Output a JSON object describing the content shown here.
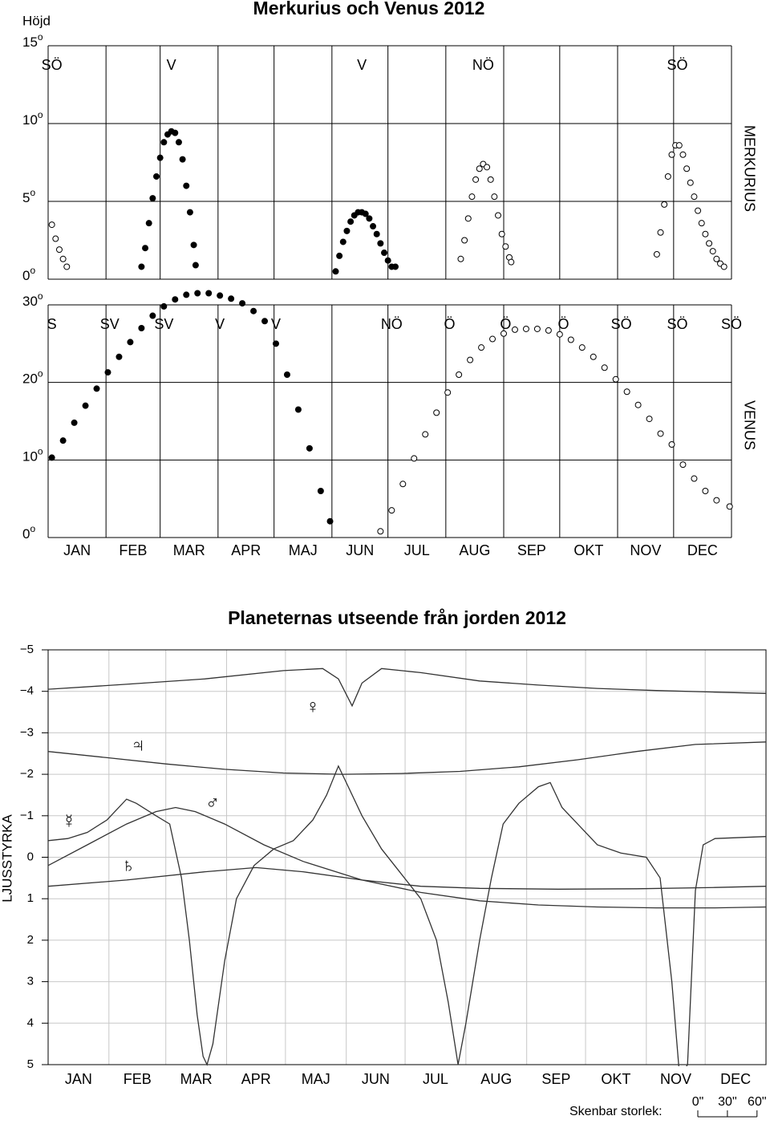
{
  "chart_data": [
    {
      "type": "scatter",
      "title": "Merkurius och Venus 2012",
      "ylabel": "Höjd",
      "side_label": "MERKURIUS",
      "degree_mark": "o",
      "xlim": [
        0,
        366
      ],
      "xticks": [
        0,
        31,
        60,
        91,
        121,
        152,
        182,
        213,
        244,
        274,
        305,
        335,
        366
      ],
      "ylim": [
        0,
        15
      ],
      "yticks": [
        0,
        5,
        10,
        15
      ],
      "grid": true,
      "directions": [
        {
          "label": "SÖ",
          "x": 2
        },
        {
          "label": "V",
          "x": 66
        },
        {
          "label": "V",
          "x": 168
        },
        {
          "label": "NÖ",
          "x": 233
        },
        {
          "label": "SÖ",
          "x": 337
        }
      ],
      "series": [
        {
          "color": "#000000",
          "marker": "filled",
          "x": [
            50,
            52,
            54,
            56,
            58,
            60,
            62,
            64,
            66,
            68,
            70,
            72,
            74,
            76,
            78,
            79,
            154,
            156,
            158,
            160,
            162,
            164,
            166,
            168,
            170,
            172,
            174,
            176,
            178,
            180,
            182,
            184,
            186
          ],
          "values": [
            0.8,
            2.0,
            3.6,
            5.2,
            6.6,
            7.8,
            8.8,
            9.3,
            9.5,
            9.4,
            8.8,
            7.7,
            6.0,
            4.3,
            2.2,
            0.9,
            0.5,
            1.5,
            2.4,
            3.1,
            3.7,
            4.1,
            4.3,
            4.3,
            4.2,
            3.9,
            3.4,
            2.9,
            2.3,
            1.7,
            1.2,
            0.8,
            0.8
          ]
        },
        {
          "color": "#000000",
          "marker": "open",
          "x": [
            2,
            4,
            6,
            8,
            10,
            221,
            223,
            225,
            227,
            229,
            231,
            233,
            235,
            237,
            239,
            241,
            243,
            245,
            247,
            248,
            326,
            328,
            330,
            332,
            334,
            336,
            338,
            340,
            342,
            344,
            346,
            348,
            350,
            352,
            354,
            356,
            358,
            360,
            362
          ],
          "values": [
            3.5,
            2.6,
            1.9,
            1.3,
            0.8,
            1.3,
            2.5,
            3.9,
            5.3,
            6.4,
            7.1,
            7.4,
            7.2,
            6.4,
            5.3,
            4.1,
            2.9,
            2.1,
            1.4,
            1.1,
            1.6,
            3.0,
            4.8,
            6.6,
            8.0,
            8.6,
            8.6,
            8.0,
            7.1,
            6.2,
            5.3,
            4.4,
            3.6,
            2.9,
            2.3,
            1.8,
            1.3,
            1.0,
            0.8
          ]
        }
      ]
    },
    {
      "type": "scatter",
      "side_label": "VENUS",
      "degree_mark": "o",
      "xlim": [
        0,
        366
      ],
      "xticks": [
        0,
        31,
        60,
        91,
        121,
        152,
        182,
        213,
        244,
        274,
        305,
        335,
        366
      ],
      "ylim": [
        0,
        30
      ],
      "yticks": [
        0,
        10,
        20,
        30
      ],
      "grid": true,
      "categories": [
        "JAN",
        "FEB",
        "MAR",
        "APR",
        "MAJ",
        "JUN",
        "JUL",
        "AUG",
        "SEP",
        "OKT",
        "NOV",
        "DEC"
      ],
      "directions": [
        {
          "label": "S",
          "x": 2
        },
        {
          "label": "SV",
          "x": 33
        },
        {
          "label": "SV",
          "x": 62
        },
        {
          "label": "V",
          "x": 92
        },
        {
          "label": "V",
          "x": 122
        },
        {
          "label": "NÖ",
          "x": 184
        },
        {
          "label": "Ö",
          "x": 215
        },
        {
          "label": "Ö",
          "x": 245
        },
        {
          "label": "Ö",
          "x": 276
        },
        {
          "label": "SÖ",
          "x": 307
        },
        {
          "label": "SÖ",
          "x": 337
        },
        {
          "label": "SÖ",
          "x": 366
        }
      ],
      "series": [
        {
          "color": "#000000",
          "marker": "filled",
          "x": [
            2,
            8,
            14,
            20,
            26,
            32,
            38,
            44,
            50,
            56,
            62,
            68,
            74,
            80,
            86,
            92,
            98,
            104,
            110,
            116,
            122,
            128,
            134,
            140,
            146,
            151
          ],
          "values": [
            10.3,
            12.5,
            14.8,
            17.0,
            19.2,
            21.3,
            23.3,
            25.2,
            27.0,
            28.6,
            29.8,
            30.7,
            31.3,
            31.5,
            31.5,
            31.2,
            30.8,
            30.2,
            29.2,
            27.9,
            25.0,
            21.0,
            16.5,
            11.5,
            6.0,
            2.1
          ]
        },
        {
          "color": "#000000",
          "marker": "open",
          "x": [
            178,
            184,
            190,
            196,
            202,
            208,
            214,
            220,
            226,
            232,
            238,
            244,
            250,
            256,
            262,
            268,
            274,
            280,
            286,
            292,
            298,
            304,
            310,
            316,
            322,
            328,
            334,
            340,
            346,
            352,
            358,
            365
          ],
          "values": [
            0.8,
            3.5,
            6.9,
            10.2,
            13.3,
            16.1,
            18.7,
            21.0,
            22.9,
            24.5,
            25.6,
            26.3,
            26.8,
            26.9,
            26.9,
            26.7,
            26.2,
            25.5,
            24.5,
            23.3,
            21.9,
            20.4,
            18.8,
            17.1,
            15.3,
            13.4,
            12.0,
            9.4,
            7.6,
            6.0,
            4.8,
            4.0
          ]
        }
      ]
    },
    {
      "type": "line",
      "title": "Planeternas utseende från jorden 2012",
      "ylabel": "LJUSSTYRKA",
      "xlim": [
        0,
        366
      ],
      "xticks": [
        0,
        31,
        60,
        91,
        121,
        152,
        182,
        213,
        244,
        274,
        305,
        335,
        366
      ],
      "ylim": [
        -5,
        5
      ],
      "y_inverted": true,
      "grid": true,
      "yticks": [
        {
          "value": -5,
          "label": "−5"
        },
        {
          "value": -4,
          "label": "−4"
        },
        {
          "value": -3,
          "label": "−3"
        },
        {
          "value": -2,
          "label": "−2"
        },
        {
          "value": -1,
          "label": "−1"
        },
        0,
        1,
        2,
        3,
        4,
        5
      ],
      "categories": [
        "JAN",
        "FEB",
        "MAR",
        "APR",
        "MAJ",
        "JUN",
        "JUL",
        "AUG",
        "SEP",
        "OKT",
        "NOV",
        "DEC"
      ],
      "series": [
        {
          "name": "♀",
          "color": "#333333",
          "x": [
            0,
            40,
            80,
            120,
            140,
            148,
            155,
            160,
            170,
            190,
            220,
            250,
            280,
            310,
            340,
            366
          ],
          "values": [
            -4.05,
            -4.17,
            -4.3,
            -4.5,
            -4.55,
            -4.3,
            -3.65,
            -4.2,
            -4.55,
            -4.45,
            -4.25,
            -4.15,
            -4.07,
            -4.02,
            -3.98,
            -3.95
          ]
        },
        {
          "name": "♃",
          "color": "#333333",
          "x": [
            0,
            30,
            60,
            90,
            120,
            150,
            180,
            210,
            240,
            270,
            300,
            330,
            366
          ],
          "values": [
            -2.55,
            -2.4,
            -2.25,
            -2.12,
            -2.03,
            -2.0,
            -2.02,
            -2.07,
            -2.18,
            -2.35,
            -2.55,
            -2.72,
            -2.78
          ]
        },
        {
          "name": "☿",
          "color": "#333333",
          "x": [
            0,
            10,
            20,
            30,
            40,
            45,
            55,
            62,
            68,
            72,
            76,
            79,
            81,
            84,
            90,
            96,
            105,
            115,
            125,
            135,
            142,
            148,
            152,
            160,
            170,
            180,
            190,
            198,
            204,
            209,
            213,
            220,
            226,
            232,
            240,
            250,
            256,
            262,
            270,
            280,
            292,
            305,
            312,
            318,
            322,
            326,
            330,
            334,
            340,
            366
          ],
          "values": [
            -0.4,
            -0.45,
            -0.6,
            -0.9,
            -1.4,
            -1.3,
            -1.0,
            -0.8,
            0.5,
            2.0,
            3.8,
            4.8,
            5.0,
            4.5,
            2.5,
            1.0,
            0.2,
            -0.2,
            -0.4,
            -0.9,
            -1.5,
            -2.2,
            -1.8,
            -1.0,
            -0.2,
            0.4,
            1.0,
            2.0,
            3.5,
            5.0,
            4.0,
            2.0,
            0.5,
            -0.8,
            -1.3,
            -1.7,
            -1.8,
            -1.2,
            -0.8,
            -0.3,
            -0.1,
            0.0,
            0.5,
            3.0,
            5.3,
            5.0,
            0.8,
            -0.3,
            -0.45,
            -0.5
          ]
        },
        {
          "name": "♂",
          "color": "#333333",
          "x": [
            0,
            20,
            40,
            55,
            65,
            75,
            90,
            110,
            130,
            160,
            190,
            220,
            250,
            280,
            310,
            340,
            366
          ],
          "values": [
            0.2,
            -0.3,
            -0.8,
            -1.1,
            -1.2,
            -1.1,
            -0.8,
            -0.3,
            0.1,
            0.55,
            0.85,
            1.05,
            1.15,
            1.2,
            1.22,
            1.22,
            1.2
          ]
        },
        {
          "name": "♄",
          "color": "#333333",
          "x": [
            0,
            40,
            80,
            106,
            130,
            160,
            190,
            220,
            260,
            300,
            340,
            366
          ],
          "values": [
            0.7,
            0.55,
            0.35,
            0.25,
            0.35,
            0.55,
            0.7,
            0.75,
            0.77,
            0.76,
            0.73,
            0.7
          ]
        }
      ],
      "size_scale": {
        "label": "Skenbar storlek:",
        "ticks": [
          {
            "value": 0,
            "label": "0\""
          },
          {
            "value": 30,
            "label": "30\""
          },
          {
            "value": 60,
            "label": "60\""
          }
        ]
      }
    }
  ]
}
